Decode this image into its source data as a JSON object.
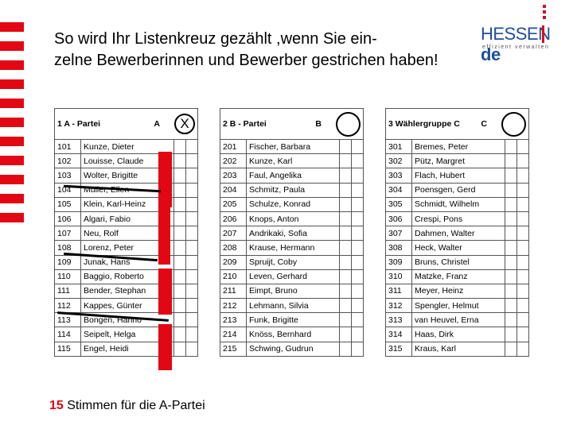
{
  "title": {
    "line1": "So wird Ihr Listenkreuz gezählt ,wenn Sie ein-",
    "line2": "zelne Bewerberinnen und Bewerber gestrichen haben!"
  },
  "logo": {
    "word": "HESSEN",
    "suffix": "de",
    "tagline": "effizient verwalten"
  },
  "parties": [
    {
      "label": "1 A - Partei",
      "letter": "A",
      "marked": "X",
      "candidates": [
        {
          "num": "101",
          "name": "Kunze, Dieter"
        },
        {
          "num": "102",
          "name": "Louisse, Claude"
        },
        {
          "num": "103",
          "name": "Wolter, Brigitte"
        },
        {
          "num": "104",
          "name": "Müller, Ellen"
        },
        {
          "num": "105",
          "name": "Klein, Karl-Heinz"
        },
        {
          "num": "106",
          "name": "Algari, Fabio"
        },
        {
          "num": "107",
          "name": "Neu, Rolf"
        },
        {
          "num": "108",
          "name": "Lorenz, Peter"
        },
        {
          "num": "109",
          "name": "Junak, Hans"
        },
        {
          "num": "110",
          "name": "Baggio, Roberto"
        },
        {
          "num": "111",
          "name": "Bender, Stephan"
        },
        {
          "num": "112",
          "name": "Kappes, Günter"
        },
        {
          "num": "113",
          "name": "Bongen, Hanno"
        },
        {
          "num": "114",
          "name": "Seipelt, Helga"
        },
        {
          "num": "115",
          "name": "Engel, Heidi"
        }
      ]
    },
    {
      "label": "2 B - Partei",
      "letter": "B",
      "marked": "",
      "candidates": [
        {
          "num": "201",
          "name": "Fischer, Barbara"
        },
        {
          "num": "202",
          "name": "Kunze, Karl"
        },
        {
          "num": "203",
          "name": "Faul, Angelika"
        },
        {
          "num": "204",
          "name": "Schmitz, Paula"
        },
        {
          "num": "205",
          "name": "Schulze, Konrad"
        },
        {
          "num": "206",
          "name": "Knops, Anton"
        },
        {
          "num": "207",
          "name": "Andrikaki, Sofia"
        },
        {
          "num": "208",
          "name": "Krause, Hermann"
        },
        {
          "num": "209",
          "name": "Spruijt, Coby"
        },
        {
          "num": "210",
          "name": "Leven, Gerhard"
        },
        {
          "num": "211",
          "name": "Eimpt, Bruno"
        },
        {
          "num": "212",
          "name": "Lehmann, Silvia"
        },
        {
          "num": "213",
          "name": "Funk, Brigitte"
        },
        {
          "num": "214",
          "name": "Knöss, Bernhard"
        },
        {
          "num": "215",
          "name": "Schwing, Gudrun"
        }
      ]
    },
    {
      "label": "3 Wählergruppe C",
      "letter": "C",
      "marked": "",
      "candidates": [
        {
          "num": "301",
          "name": "Bremes, Peter"
        },
        {
          "num": "302",
          "name": "Pütz, Margret"
        },
        {
          "num": "303",
          "name": "Flach, Hubert"
        },
        {
          "num": "304",
          "name": "Poensgen, Gerd"
        },
        {
          "num": "305",
          "name": "Schmidt, Wilhelm"
        },
        {
          "num": "306",
          "name": "Crespi, Pons"
        },
        {
          "num": "307",
          "name": "Dahmen, Walter"
        },
        {
          "num": "308",
          "name": "Heck, Walter"
        },
        {
          "num": "309",
          "name": "Bruns, Christel"
        },
        {
          "num": "310",
          "name": "Matzke, Franz"
        },
        {
          "num": "311",
          "name": "Meyer, Heinz"
        },
        {
          "num": "312",
          "name": "Spengler, Helmut"
        },
        {
          "num": "313",
          "name": "van Heuvel, Erna"
        },
        {
          "num": "314",
          "name": "Haas, Dirk"
        },
        {
          "num": "315",
          "name": "Kraus, Karl"
        }
      ]
    }
  ],
  "footer": {
    "count": "15",
    "text": " Stimmen für die A-Partei"
  },
  "colors": {
    "accent": "#e30613",
    "logo_blue": "#1f4e9a"
  }
}
